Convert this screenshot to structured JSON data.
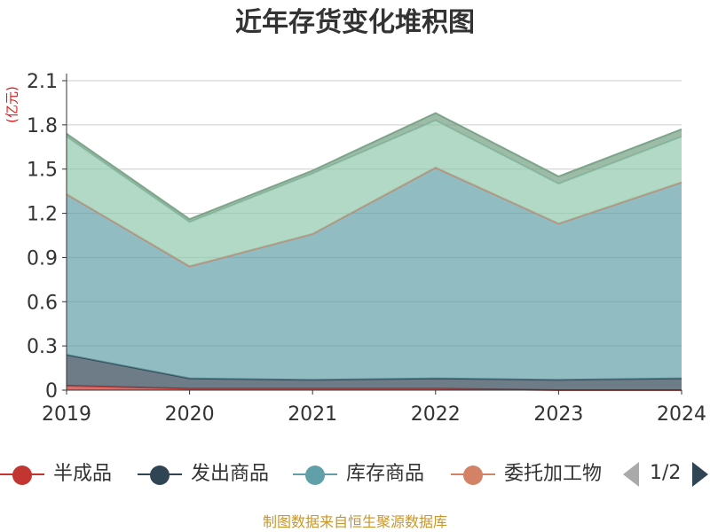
{
  "title": "近年存货变化堆积图",
  "unit": "(亿元)",
  "source": "制图数据来自恒生聚源数据库",
  "legend": {
    "items": [
      {
        "label": "半成品",
        "color": "#c23531"
      },
      {
        "label": "发出商品",
        "color": "#2f4554"
      },
      {
        "label": "库存商品",
        "color": "#61a0a8"
      },
      {
        "label": "委托加工物",
        "color": "#d48265"
      }
    ],
    "page": "1/2"
  },
  "chart_data": {
    "type": "area",
    "stacked": true,
    "title": "近年存货变化堆积图",
    "ylabel": "(亿元)",
    "x": [
      "2019",
      "2020",
      "2021",
      "2022",
      "2023",
      "2024"
    ],
    "yticks": [
      "0",
      "0.3",
      "0.6",
      "0.9",
      "1.2",
      "1.5",
      "1.8",
      "2.1"
    ],
    "ylim": [
      0,
      2.1
    ],
    "grid": true,
    "legend_position": "bottom",
    "series": [
      {
        "name": "半成品",
        "color": "#c23531",
        "values": [
          0.03,
          0.01,
          0.01,
          0.01,
          0.0,
          0.0
        ]
      },
      {
        "name": "发出商品",
        "color": "#2f4554",
        "values": [
          0.21,
          0.07,
          0.06,
          0.07,
          0.07,
          0.08
        ]
      },
      {
        "name": "库存商品",
        "color": "#61a0a8",
        "values": [
          1.09,
          0.76,
          0.99,
          1.43,
          1.06,
          1.33
        ]
      },
      {
        "name": "委托加工物",
        "color": "#d48265",
        "values": [
          0.0,
          0.0,
          0.0,
          0.0,
          0.0,
          0.0
        ]
      },
      {
        "color": "#91c7ae",
        "values": [
          0.39,
          0.3,
          0.41,
          0.32,
          0.27,
          0.31
        ]
      },
      {
        "color": "#749f83",
        "values": [
          0.02,
          0.02,
          0.02,
          0.05,
          0.05,
          0.05
        ]
      }
    ]
  }
}
